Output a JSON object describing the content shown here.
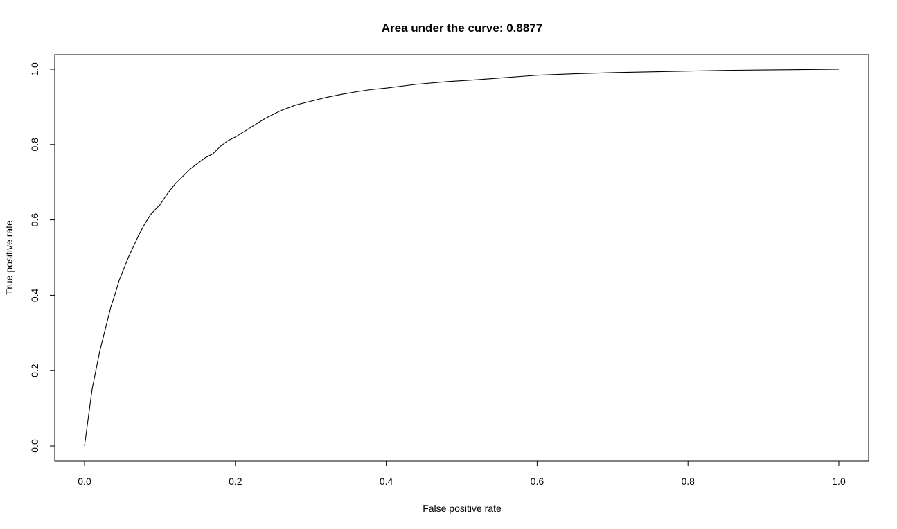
{
  "chart_data": {
    "type": "line",
    "title": "Area under the curve: 0.8877",
    "xlabel": "False positive rate",
    "ylabel": "True positive rate",
    "xlim": [
      0,
      1
    ],
    "ylim": [
      0,
      1
    ],
    "x_ticks": [
      "0.0",
      "0.2",
      "0.4",
      "0.6",
      "0.8",
      "1.0"
    ],
    "y_ticks": [
      "0.0",
      "0.2",
      "0.4",
      "0.6",
      "0.8",
      "1.0"
    ],
    "grid": false,
    "legend": "none",
    "series": [
      {
        "color": "#000000",
        "x": [
          0.0,
          0.002,
          0.004,
          0.006,
          0.008,
          0.01,
          0.013,
          0.016,
          0.02,
          0.025,
          0.03,
          0.035,
          0.04,
          0.046,
          0.052,
          0.058,
          0.065,
          0.072,
          0.08,
          0.088,
          0.095,
          0.1,
          0.11,
          0.12,
          0.13,
          0.14,
          0.15,
          0.16,
          0.17,
          0.18,
          0.19,
          0.2,
          0.22,
          0.24,
          0.26,
          0.28,
          0.3,
          0.32,
          0.34,
          0.36,
          0.38,
          0.4,
          0.44,
          0.48,
          0.52,
          0.56,
          0.6,
          0.65,
          0.7,
          0.75,
          0.8,
          0.85,
          0.9,
          0.95,
          1.0
        ],
        "y": [
          0.0,
          0.03,
          0.06,
          0.09,
          0.12,
          0.15,
          0.18,
          0.21,
          0.25,
          0.29,
          0.33,
          0.37,
          0.4,
          0.44,
          0.47,
          0.5,
          0.53,
          0.56,
          0.59,
          0.615,
          0.63,
          0.64,
          0.67,
          0.695,
          0.715,
          0.735,
          0.75,
          0.765,
          0.775,
          0.795,
          0.81,
          0.82,
          0.845,
          0.87,
          0.89,
          0.905,
          0.915,
          0.925,
          0.933,
          0.94,
          0.946,
          0.95,
          0.96,
          0.967,
          0.972,
          0.978,
          0.984,
          0.988,
          0.991,
          0.993,
          0.995,
          0.997,
          0.998,
          0.999,
          1.0
        ]
      }
    ]
  }
}
